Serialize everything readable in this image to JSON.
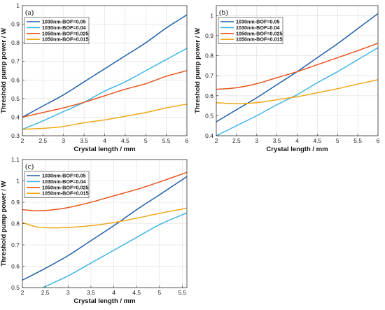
{
  "chart_data": [
    {
      "type": "line",
      "panel_label": "(a)",
      "xlabel": "Crystal length / mm",
      "ylabel": "Threshold pump power / W",
      "xlim": [
        2,
        6
      ],
      "ylim": [
        0.3,
        1.0
      ],
      "xticks": [
        2,
        2.5,
        3,
        3.5,
        4,
        4.5,
        5,
        5.5,
        6
      ],
      "xtick_labels": [
        "2",
        "2.5",
        "3",
        "3.5",
        "4",
        "4.5",
        "5",
        "5.5",
        "6"
      ],
      "yticks": [
        0.3,
        0.4,
        0.5,
        0.6,
        0.7,
        0.8,
        0.9,
        1.0
      ],
      "ytick_labels": [
        "0.3",
        "0.4",
        "0.5",
        "0.6",
        "0.7",
        "0.8",
        "0.9",
        "1"
      ],
      "grid": true,
      "legend_position": "top-left",
      "x": [
        2,
        2.5,
        3,
        3.5,
        4,
        4.5,
        5,
        5.5,
        6
      ],
      "series": [
        {
          "name": "1030nm-BOF=0.05",
          "color": "#1f5fa8",
          "values": [
            0.4,
            0.46,
            0.52,
            0.59,
            0.66,
            0.73,
            0.8,
            0.88,
            0.95
          ]
        },
        {
          "name": "1030nm-BOF=0.04",
          "color": "#41b6e6",
          "values": [
            0.335,
            0.38,
            0.43,
            0.48,
            0.54,
            0.59,
            0.65,
            0.71,
            0.77
          ]
        },
        {
          "name": "1050nm-BOF=0.025",
          "color": "#e8541e",
          "values": [
            0.4,
            0.425,
            0.45,
            0.48,
            0.515,
            0.55,
            0.58,
            0.62,
            0.65
          ]
        },
        {
          "name": "1050nm-BOF=0.015",
          "color": "#f0a818",
          "values": [
            0.335,
            0.34,
            0.35,
            0.37,
            0.385,
            0.405,
            0.425,
            0.45,
            0.47
          ]
        }
      ]
    },
    {
      "type": "line",
      "panel_label": "(b)",
      "xlabel": "Crystal length / mm",
      "ylabel": "Threshold pump power / W",
      "xlim": [
        2,
        6
      ],
      "ylim": [
        0.4,
        1.05
      ],
      "xticks": [
        2,
        2.5,
        3,
        3.5,
        4,
        4.5,
        5,
        5.5,
        6
      ],
      "xtick_labels": [
        "2",
        "2.5",
        "3",
        "3.5",
        "4",
        "4.5",
        "5",
        "5.5",
        "6"
      ],
      "yticks": [
        0.4,
        0.5,
        0.6,
        0.7,
        0.8,
        0.9,
        1.0
      ],
      "ytick_labels": [
        "0.4",
        "0.5",
        "0.6",
        "0.7",
        "0.8",
        "0.9",
        "1"
      ],
      "grid": true,
      "legend_position": "top-left",
      "x": [
        2,
        2.5,
        3,
        3.5,
        4,
        4.5,
        5,
        5.5,
        6
      ],
      "series": [
        {
          "name": "1030nm-BOF=0.05",
          "color": "#1f5fa8",
          "values": [
            0.47,
            0.53,
            0.59,
            0.655,
            0.72,
            0.79,
            0.86,
            0.935,
            1.01
          ]
        },
        {
          "name": "1030nm-BOF=0.04",
          "color": "#41b6e6",
          "values": [
            0.4,
            0.45,
            0.5,
            0.555,
            0.605,
            0.665,
            0.72,
            0.78,
            0.84
          ]
        },
        {
          "name": "1050nm-BOF=0.025",
          "color": "#e8541e",
          "values": [
            0.632,
            0.64,
            0.66,
            0.69,
            0.72,
            0.755,
            0.79,
            0.825,
            0.862
          ]
        },
        {
          "name": "1050nm-BOF=0.015",
          "color": "#f0a818",
          "values": [
            0.565,
            0.56,
            0.565,
            0.58,
            0.595,
            0.615,
            0.635,
            0.658,
            0.68
          ]
        }
      ]
    },
    {
      "type": "line",
      "panel_label": "(c)",
      "xlabel": "Crystal length / mm",
      "ylabel": "Threshold pump power / W",
      "xlim": [
        2,
        5.6
      ],
      "ylim": [
        0.5,
        1.1
      ],
      "xticks": [
        2,
        2.5,
        3,
        3.5,
        4,
        4.5,
        5,
        5.5
      ],
      "xtick_labels": [
        "2",
        "2.5",
        "3",
        "3.5",
        "4",
        "4.5",
        "5",
        "5.5"
      ],
      "yticks": [
        0.5,
        0.6,
        0.7,
        0.8,
        0.9,
        1.0,
        1.1
      ],
      "ytick_labels": [
        "0.5",
        "0.6",
        "0.7",
        "0.8",
        "0.9",
        "1",
        "1.1"
      ],
      "grid": true,
      "legend_position": "top-left",
      "series": [
        {
          "name": "1030nm-BOF=0.05",
          "color": "#1f5fa8",
          "x": [
            2,
            2.5,
            3,
            3.5,
            4,
            4.5,
            5,
            5.6
          ],
          "values": [
            0.535,
            0.59,
            0.65,
            0.72,
            0.79,
            0.865,
            0.935,
            1.02
          ]
        },
        {
          "name": "1030nm-BOF=0.04",
          "color": "#41b6e6",
          "x": [
            2.45,
            3,
            3.5,
            4,
            4.5,
            5,
            5.6
          ],
          "values": [
            0.5,
            0.555,
            0.615,
            0.675,
            0.735,
            0.795,
            0.85
          ]
        },
        {
          "name": "1050nm-BOF=0.025",
          "color": "#e8541e",
          "x": [
            2,
            2.3,
            2.6,
            3,
            3.5,
            4,
            4.5,
            5,
            5.6
          ],
          "values": [
            0.865,
            0.86,
            0.863,
            0.875,
            0.9,
            0.93,
            0.96,
            0.995,
            1.04
          ]
        },
        {
          "name": "1050nm-BOF=0.015",
          "color": "#f0a818",
          "x": [
            2,
            2.3,
            2.6,
            3,
            3.5,
            4,
            4.5,
            5,
            5.6
          ],
          "values": [
            0.805,
            0.785,
            0.78,
            0.782,
            0.79,
            0.805,
            0.825,
            0.848,
            0.872
          ]
        }
      ]
    }
  ]
}
